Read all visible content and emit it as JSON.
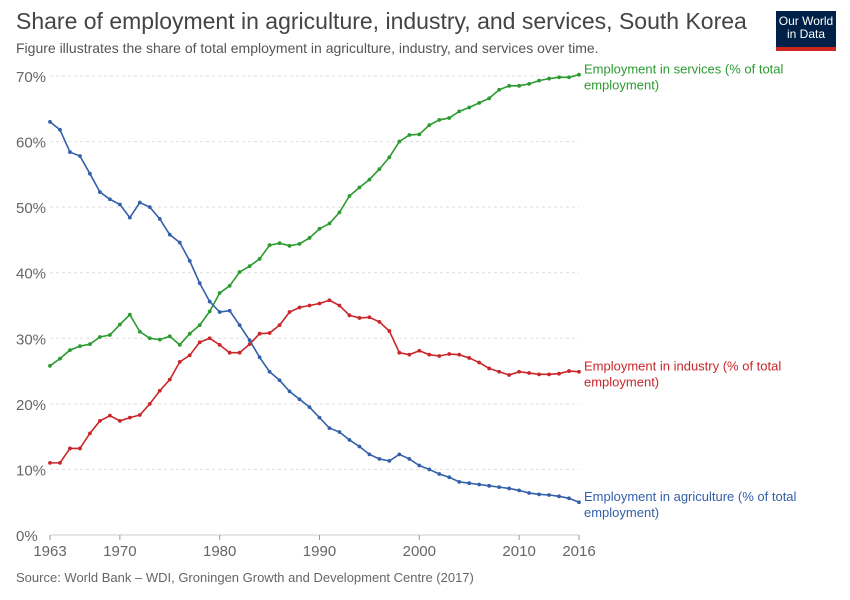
{
  "header": {
    "title": "Share of employment in agriculture, industry, and services, South Korea",
    "subtitle": "Figure illustrates the share of total employment in agriculture, industry, and services over time."
  },
  "logo": {
    "line1": "Our World",
    "line2": "in Data",
    "bg_color": "#002147",
    "accent_color": "#ce261e"
  },
  "footer": {
    "source": "Source: World Bank – WDI, Groningen Growth and Development Centre (2017)"
  },
  "chart_data": {
    "type": "line",
    "title": "Share of employment in agriculture, industry, and services, South Korea",
    "subtitle": "Figure illustrates the share of total employment in agriculture, industry, and services over time.",
    "xlabel": "",
    "ylabel": "",
    "xlim": [
      1963,
      2016
    ],
    "ylim": [
      0,
      70
    ],
    "x_ticks": [
      1963,
      1970,
      1980,
      1990,
      2000,
      2010,
      2016
    ],
    "y_ticks": [
      0,
      10,
      20,
      30,
      40,
      50,
      60,
      70
    ],
    "y_tick_labels": [
      "0%",
      "10%",
      "20%",
      "30%",
      "40%",
      "50%",
      "60%",
      "70%"
    ],
    "grid": "horizontal-dashed",
    "legend": "inline-right",
    "x": [
      1963,
      1964,
      1965,
      1966,
      1967,
      1968,
      1969,
      1970,
      1971,
      1972,
      1973,
      1974,
      1975,
      1976,
      1977,
      1978,
      1979,
      1980,
      1981,
      1982,
      1983,
      1984,
      1985,
      1986,
      1987,
      1988,
      1989,
      1990,
      1991,
      1992,
      1993,
      1994,
      1995,
      1996,
      1997,
      1998,
      1999,
      2000,
      2001,
      2002,
      2003,
      2004,
      2005,
      2006,
      2007,
      2008,
      2009,
      2010,
      2011,
      2012,
      2013,
      2014,
      2015,
      2016
    ],
    "series": [
      {
        "name": "Employment in services (% of total employment)",
        "label_lines": [
          "Employment in services (% of total",
          "employment)"
        ],
        "color": "#2b9a2f",
        "values": [
          25.8,
          26.9,
          28.2,
          28.8,
          29.1,
          30.2,
          30.5,
          32.1,
          33.6,
          31.0,
          30.0,
          29.8,
          30.3,
          29.0,
          30.7,
          32.0,
          34.1,
          36.9,
          38.0,
          40.1,
          41.0,
          42.1,
          44.2,
          44.5,
          44.1,
          44.4,
          45.3,
          46.7,
          47.5,
          49.2,
          51.7,
          53.0,
          54.2,
          55.8,
          57.6,
          60.0,
          61.0,
          61.1,
          62.5,
          63.3,
          63.6,
          64.6,
          65.2,
          65.9,
          66.6,
          67.9,
          68.5,
          68.5,
          68.8,
          69.3,
          69.6,
          69.8,
          69.8,
          70.2
        ]
      },
      {
        "name": "Employment in industry (% of total employment)",
        "label_lines": [
          "Employment in industry (% of total",
          "employment)"
        ],
        "color": "#c9262a",
        "values": [
          11.0,
          11.0,
          13.2,
          13.2,
          15.5,
          17.4,
          18.2,
          17.4,
          17.9,
          18.3,
          20.0,
          22.0,
          23.7,
          26.4,
          27.4,
          29.4,
          30.0,
          29.0,
          27.8,
          27.8,
          29.1,
          30.7,
          30.8,
          32.0,
          34.0,
          34.7,
          35.0,
          35.3,
          35.8,
          35.0,
          33.5,
          33.1,
          33.2,
          32.5,
          31.1,
          27.8,
          27.5,
          28.1,
          27.5,
          27.3,
          27.6,
          27.5,
          27.0,
          26.3,
          25.4,
          24.9,
          24.4,
          24.9,
          24.7,
          24.5,
          24.5,
          24.6,
          25.0,
          24.9
        ]
      },
      {
        "name": "Employment in agriculture (% of total employment)",
        "label_lines": [
          "Employment in agriculture (% of total",
          "employment)"
        ],
        "color": "#3360a9",
        "values": [
          63.0,
          61.8,
          58.4,
          57.8,
          55.1,
          52.3,
          51.2,
          50.4,
          48.4,
          50.7,
          50.0,
          48.2,
          45.8,
          44.6,
          41.8,
          38.4,
          35.6,
          34.0,
          34.2,
          32.0,
          29.7,
          27.1,
          24.9,
          23.6,
          21.9,
          20.7,
          19.5,
          17.9,
          16.3,
          15.7,
          14.5,
          13.5,
          12.3,
          11.6,
          11.3,
          12.3,
          11.6,
          10.6,
          10.0,
          9.3,
          8.8,
          8.1,
          7.9,
          7.7,
          7.5,
          7.3,
          7.1,
          6.8,
          6.4,
          6.2,
          6.1,
          5.9,
          5.6,
          5.0
        ]
      }
    ]
  }
}
